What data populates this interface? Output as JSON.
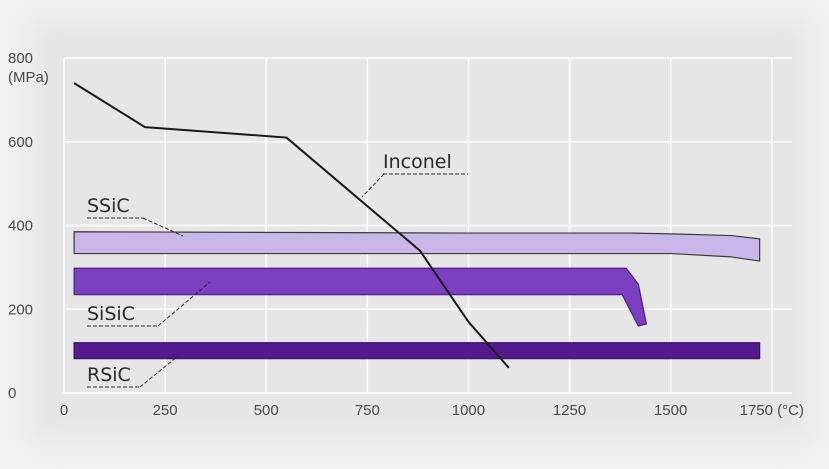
{
  "chart_data": {
    "type": "line",
    "title": "",
    "xlabel": "",
    "ylabel": "",
    "xlim": [
      0,
      1800
    ],
    "ylim": [
      0,
      800
    ],
    "grid": true,
    "x_ticks": [
      0,
      250,
      500,
      750,
      1000,
      1250,
      1500,
      1750
    ],
    "x_tick_labels": [
      "0",
      "250",
      "500",
      "750",
      "1000",
      "1250",
      "1500",
      "1750 (°C)"
    ],
    "y_ticks": [
      0,
      200,
      400,
      600,
      800
    ],
    "y_tick_labels": [
      "0",
      "200",
      "400",
      "600",
      "800"
    ],
    "y_unit_label": "(MPa)",
    "line_series": [
      {
        "name": "Inconel",
        "color": "#1a1a1a",
        "x": [
          25,
          200,
          550,
          880,
          1000,
          1100
        ],
        "y": [
          740,
          635,
          610,
          340,
          170,
          60
        ]
      }
    ],
    "band_series": [
      {
        "name": "SSiC",
        "fill": "#cbb6ea",
        "stroke": "#3a3a3a",
        "x": [
          25,
          1000,
          1400,
          1500,
          1650,
          1720
        ],
        "upper": [
          385,
          382,
          382,
          380,
          376,
          368
        ],
        "lower": [
          333,
          333,
          333,
          333,
          325,
          315
        ]
      },
      {
        "name": "SiSiC",
        "fill": "#7b3fbf",
        "stroke": "#4e1e8a",
        "x": [
          25,
          1380,
          1390,
          1420,
          1440,
          1420,
          1380,
          1350,
          25
        ],
        "y": [
          298,
          298,
          298,
          260,
          165,
          160,
          235,
          235,
          235
        ]
      },
      {
        "name": "RSiC",
        "fill": "#531b8e",
        "stroke": "#3b0f6a",
        "x": [
          25,
          1720
        ],
        "upper": [
          120,
          120
        ],
        "lower": [
          82,
          82
        ]
      }
    ],
    "annotations": [
      {
        "text": "Inconel",
        "points_to_series": "Inconel"
      },
      {
        "text": "SSiC",
        "points_to_series": "SSiC"
      },
      {
        "text": "SiSiC",
        "points_to_series": "SiSiC"
      },
      {
        "text": "RSiC",
        "points_to_series": "RSiC"
      }
    ],
    "colors": {
      "plot_background": "#e6e6e6",
      "frame_background": "#f1f1f1",
      "grid": "#ffffff",
      "tick_text": "#4a4a4a"
    }
  }
}
